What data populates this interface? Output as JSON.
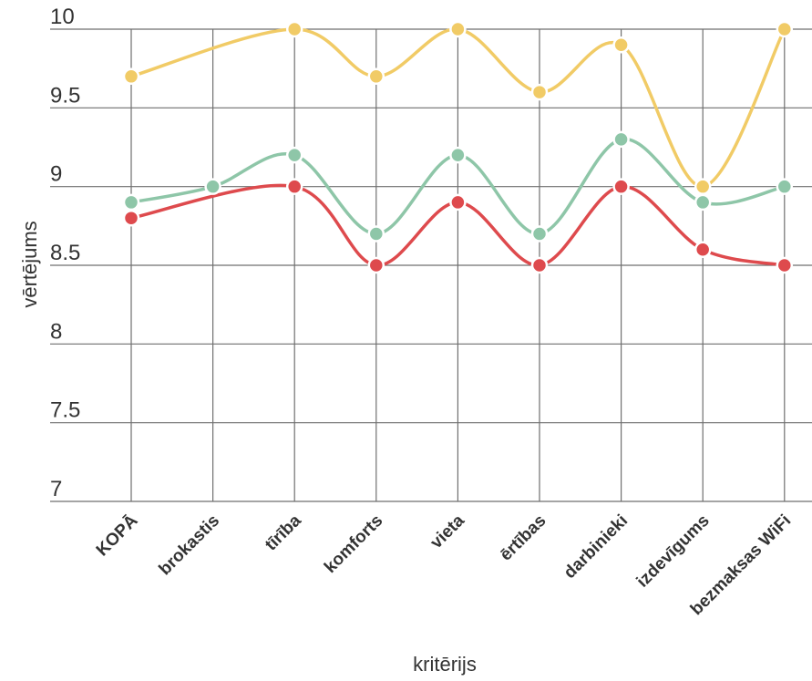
{
  "chart_data": {
    "type": "line",
    "title": "",
    "xlabel": "kritērijs",
    "ylabel": "vērtējums",
    "ylim": [
      7,
      10
    ],
    "yticks": [
      "7",
      "7.5",
      "8",
      "8.5",
      "9",
      "9.5",
      "10"
    ],
    "grid": true,
    "legend": "none",
    "categories": [
      "KOPĀ",
      "brokastis",
      "tīrība",
      "komforts",
      "vieta",
      "ērtības",
      "darbinieki",
      "izdevīgums",
      "bezmaksas WiFi"
    ],
    "series": [
      {
        "color": "#f1cb66",
        "values": [
          9.7,
          null,
          10.0,
          9.7,
          10.0,
          9.6,
          9.9,
          9.0,
          10.0
        ]
      },
      {
        "color": "#8ec6a8",
        "values": [
          8.9,
          9.0,
          9.2,
          8.7,
          9.2,
          8.7,
          9.3,
          8.9,
          9.0
        ]
      },
      {
        "color": "#de4a4d",
        "values": [
          8.8,
          null,
          9.0,
          8.5,
          8.9,
          8.5,
          9.0,
          8.6,
          8.5
        ]
      }
    ]
  }
}
